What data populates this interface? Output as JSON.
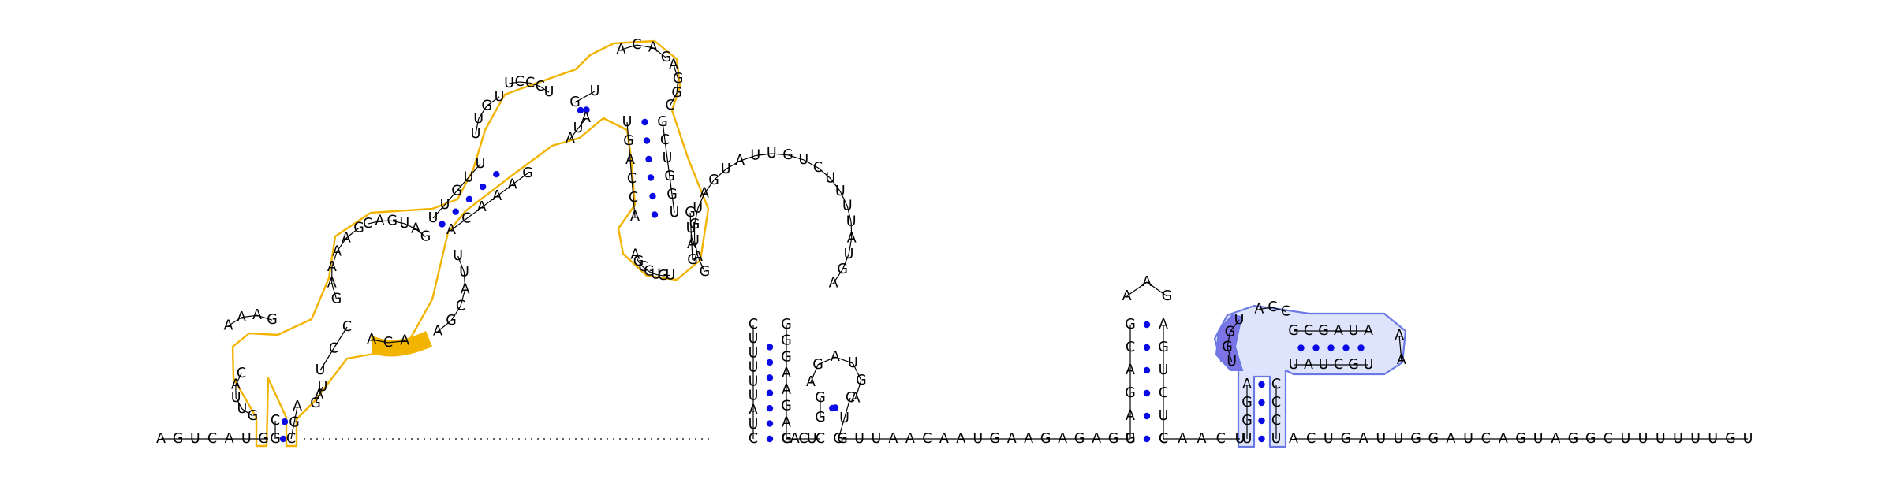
{
  "diagram": {
    "colors": {
      "backbone": "#000000",
      "base_pair_dot": "#0a0ae6",
      "highlight_orange": "#f2b400",
      "highlight_blue_fill": "#dde4fb",
      "highlight_blue_stroke": "#6a78e4",
      "highlight_blue_dark": "#7c74e6"
    },
    "linear_5prime": "AGUCAUG",
    "linear_3prime": "ACUGAUUGGAUCAGUAGGCUUUUUUGU",
    "left_domain": {
      "stem_base_left": "GC",
      "stem_base_right": "CGA",
      "loop_left_side": "GUUAC",
      "loop_top": "AAAG",
      "inner_left": "CCU",
      "inner_right": "UAG",
      "big_loop_left": "GAAAAG",
      "big_loop_top": "CAGUAG",
      "highlight_loop": "ACA",
      "right_side": "UUACGA",
      "helix_upper_left": "UUGUU",
      "helix_upper_right": "ACAAAG",
      "loop2_left": "UUGU",
      "loop2_top": "UCCCU",
      "helix3_left": "GU",
      "helix3_right": "AUA",
      "hairpin_top": "ACAG",
      "hairpin_right": "AGGC",
      "helix4_left": "UGACCA",
      "helix4_right": "GCUGGU",
      "small_loop": "AGCGUGU",
      "small_loop_tail": "GUAG"
    },
    "big_hairpin": {
      "stem_5prime": "CUUUUUAUC",
      "stem_3prime": "GGGAAGAC",
      "loop": "GAUGUAGUAUUGUCUUUUAUGA"
    },
    "small_hairpin": {
      "stem_5prime": "GACUC",
      "loop": "AGAUGA",
      "stem_3prime": "CUG"
    },
    "hairpin3": {
      "spacer": "GUUAACAAUGAAGAGAGG",
      "stem_5prime": "UAGACG",
      "loop": "AAG",
      "stem_3prime": "AGUCUC",
      "spacer_after": "CAACU"
    },
    "blue_domain": {
      "stem_left": "UGGA",
      "stem_right": "CCCU",
      "dark_patch": "UGGU",
      "loop_top": "ACC",
      "arm_top": "GCGAUA",
      "arm_cap": "AA",
      "arm_bottom": "UGCUAU"
    }
  }
}
